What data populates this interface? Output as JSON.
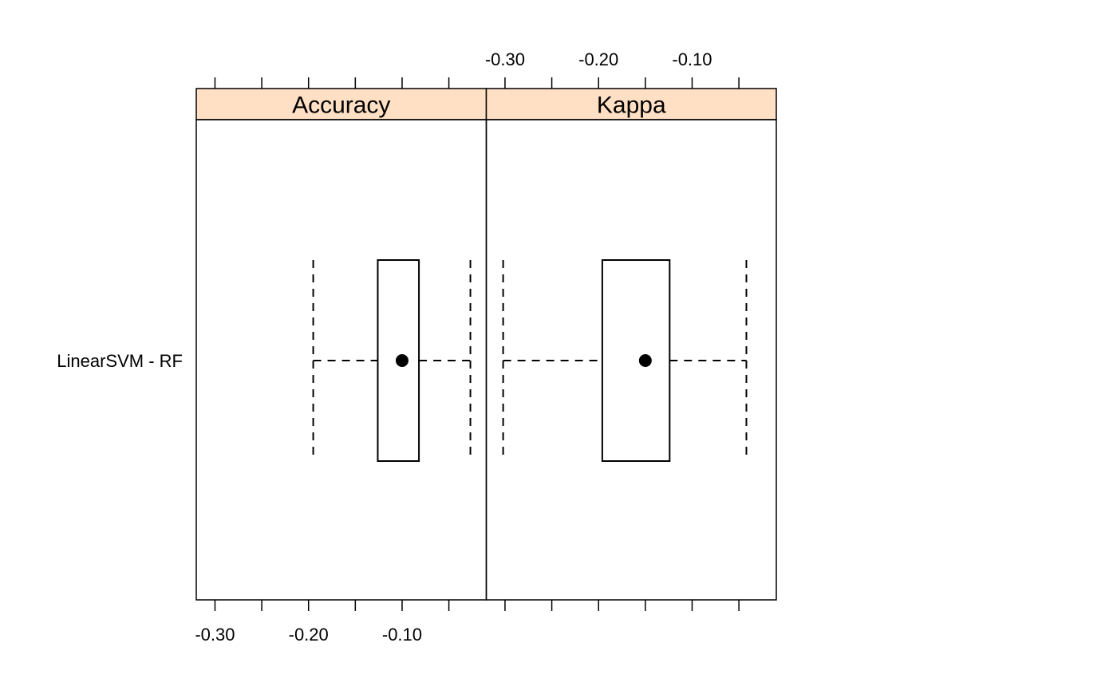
{
  "chart_data": {
    "type": "boxplot",
    "panels": [
      {
        "strip_label": "Accuracy",
        "xticks": [
          -0.3,
          -0.25,
          -0.2,
          -0.15,
          -0.1,
          -0.05
        ],
        "xtick_labels": [
          "-0.30",
          "-0.20",
          "-0.10"
        ],
        "xtick_label_values": [
          -0.3,
          -0.2,
          -0.1
        ],
        "xlim": [
          -0.32,
          -0.01
        ],
        "tick_labels_side": "bottom",
        "boxes": [
          {
            "category": "LinearSVM - RF",
            "min": -0.195,
            "q1": -0.126,
            "median": -0.1,
            "q3": -0.082,
            "max": -0.027
          }
        ]
      },
      {
        "strip_label": "Kappa",
        "xticks": [
          -0.3,
          -0.25,
          -0.2,
          -0.15,
          -0.1,
          -0.05
        ],
        "xtick_labels": [
          "-0.30",
          "-0.20",
          "-0.10"
        ],
        "xtick_label_values": [
          -0.3,
          -0.2,
          -0.1
        ],
        "xlim": [
          -0.32,
          -0.01
        ],
        "tick_labels_side": "top",
        "boxes": [
          {
            "category": "LinearSVM - RF",
            "min": -0.302,
            "q1": -0.196,
            "median": -0.15,
            "q3": -0.124,
            "max": -0.042
          }
        ]
      }
    ],
    "y_categories": [
      "LinearSVM - RF"
    ],
    "strip_color": "#ffe0c4",
    "grid": false,
    "legend": "none"
  }
}
